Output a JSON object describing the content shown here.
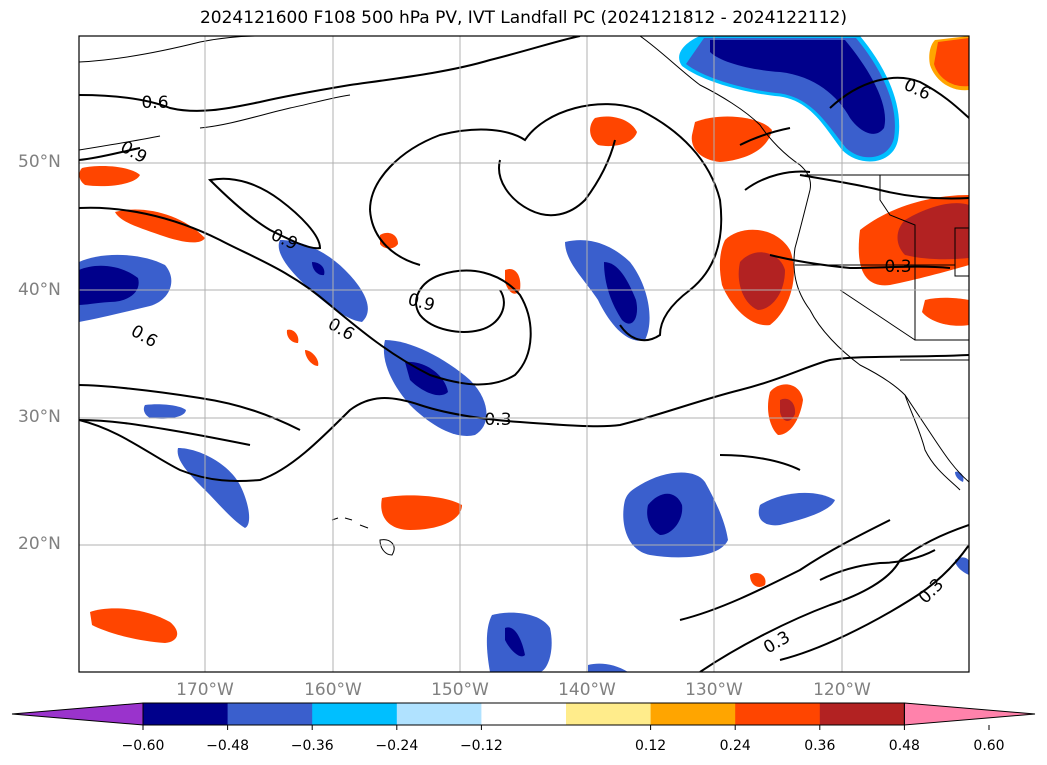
{
  "title": "2024121600 F108 500 hPa PV, IVT Landfall PC (2024121812 - 2024122112)",
  "map": {
    "lat_labels": [
      "50°N",
      "40°N",
      "30°N",
      "20°N"
    ],
    "lon_labels": [
      "170°W",
      "160°W",
      "150°W",
      "140°W",
      "130°W",
      "120°W"
    ],
    "contour_labels": [
      "0.6",
      "0.9",
      "0.9",
      "0.6",
      "0.6",
      "0.9",
      "0.3",
      "0.6",
      "0.3",
      "0.3",
      "0.3"
    ]
  },
  "colorbar": {
    "colors": [
      "#9a33cc",
      "#00008b",
      "#3a5fcd",
      "#00bfff",
      "#b0e2ff",
      "#ffffff",
      "#ffec8b",
      "#ffa500",
      "#ff4500",
      "#b22222",
      "#ff82ab"
    ],
    "ticks": [
      "−0.60",
      "−0.48",
      "−0.36",
      "−0.24",
      "−0.12",
      "0.12",
      "0.24",
      "0.36",
      "0.48",
      "0.60"
    ]
  }
}
